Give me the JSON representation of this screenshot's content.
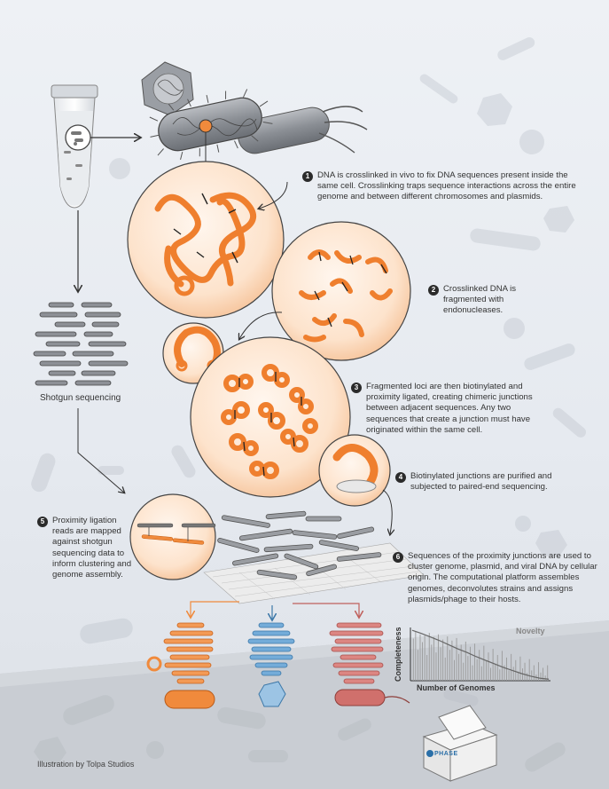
{
  "steps": [
    {
      "num": "1",
      "text": "DNA is crosslinked in vivo to fix DNA sequences present inside the same cell. Crosslinking traps sequence interactions across the entire genome and between different chromosomes and plasmids."
    },
    {
      "num": "2",
      "text": "Crosslinked DNA is fragmented with endonucleases."
    },
    {
      "num": "3",
      "text": "Fragmented loci are then biotinylated and proximity ligated, creating chimeric junctions between adjacent sequences. Any two sequences that create a junction must have originated within the same cell."
    },
    {
      "num": "4",
      "text": "Biotinylated junctions are purified and subjected to paired-end sequencing."
    },
    {
      "num": "5",
      "text": "Proximity ligation reads are mapped against shotgun sequencing data to inform clustering and genome assembly."
    },
    {
      "num": "6",
      "text": "Sequences of the proximity junctions are used to cluster genome, plasmid, and viral DNA by cellular origin. The computational platform assembles genomes, deconvolutes strains and assigns plasmids/phage to their hosts."
    }
  ],
  "shotgun_label": "Shotgun sequencing",
  "credit": "Illustration by Tolpa Studios",
  "logo_text": "PHASE",
  "colors": {
    "orange": "#f08a3c",
    "blue": "#5b9fd1",
    "red": "#d0706c",
    "gray": "#8d9096"
  },
  "chart_data": {
    "type": "bar",
    "title": "Novelty",
    "xlabel": "Number of Genomes",
    "ylabel": "Completeness",
    "values": [
      0.82,
      0.95,
      0.6,
      0.9,
      0.75,
      0.88,
      0.5,
      0.93,
      0.7,
      0.85,
      0.55,
      0.9,
      0.65,
      0.8,
      0.45,
      0.86,
      0.6,
      0.78,
      0.4,
      0.83,
      0.52,
      0.7,
      0.35,
      0.76,
      0.48,
      0.66,
      0.3,
      0.72,
      0.42,
      0.6,
      0.28,
      0.68,
      0.38,
      0.55,
      0.25,
      0.62,
      0.33,
      0.5,
      0.22,
      0.58,
      0.3,
      0.45,
      0.2,
      0.52,
      0.27,
      0.4,
      0.18,
      0.47,
      0.24,
      0.35,
      0.15,
      0.42,
      0.2,
      0.3,
      0.12,
      0.36,
      0.16,
      0.25,
      0.1,
      0.3
    ],
    "trend": [
      0.98,
      0.92,
      0.85,
      0.78,
      0.7,
      0.62,
      0.55,
      0.47,
      0.4,
      0.33,
      0.26,
      0.2,
      0.14,
      0.09,
      0.05,
      0.03
    ],
    "ylim": [
      0,
      1
    ]
  }
}
